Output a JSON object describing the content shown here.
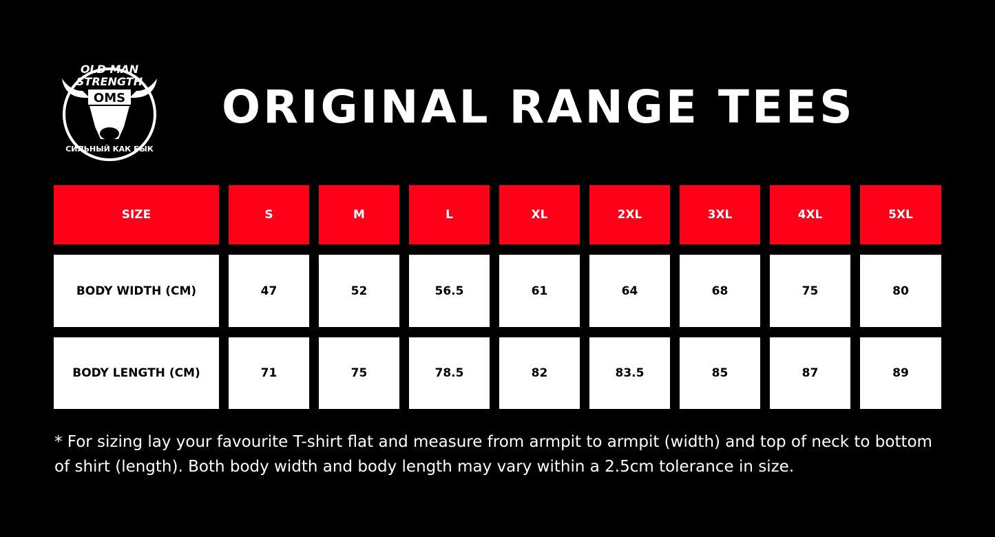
{
  "logo": {
    "top_text": "OLD MAN STRENGTH",
    "monogram": "OMS",
    "bottom_text": "СИЛЬНЫЙ КАК БЫК"
  },
  "title": "ORIGINAL RANGE TEES",
  "colors": {
    "header_bg": "#ff0019",
    "row_bg": "#ffffff",
    "background": "#000000"
  },
  "table": {
    "headers": [
      "SIZE",
      "S",
      "M",
      "L",
      "XL",
      "2XL",
      "3XL",
      "4XL",
      "5XL"
    ],
    "rows": [
      [
        "BODY WIDTH (CM)",
        "47",
        "52",
        "56.5",
        "61",
        "64",
        "68",
        "75",
        "80"
      ],
      [
        "BODY LENGTH (CM)",
        "71",
        "75",
        "78.5",
        "82",
        "83.5",
        "85",
        "87",
        "89"
      ]
    ]
  },
  "footnote": "* For sizing lay your favourite T-shirt flat and measure from armpit to armpit (width) and top of neck to bottom of shirt (length). Both body width and body length may vary within a 2.5cm tolerance in size."
}
